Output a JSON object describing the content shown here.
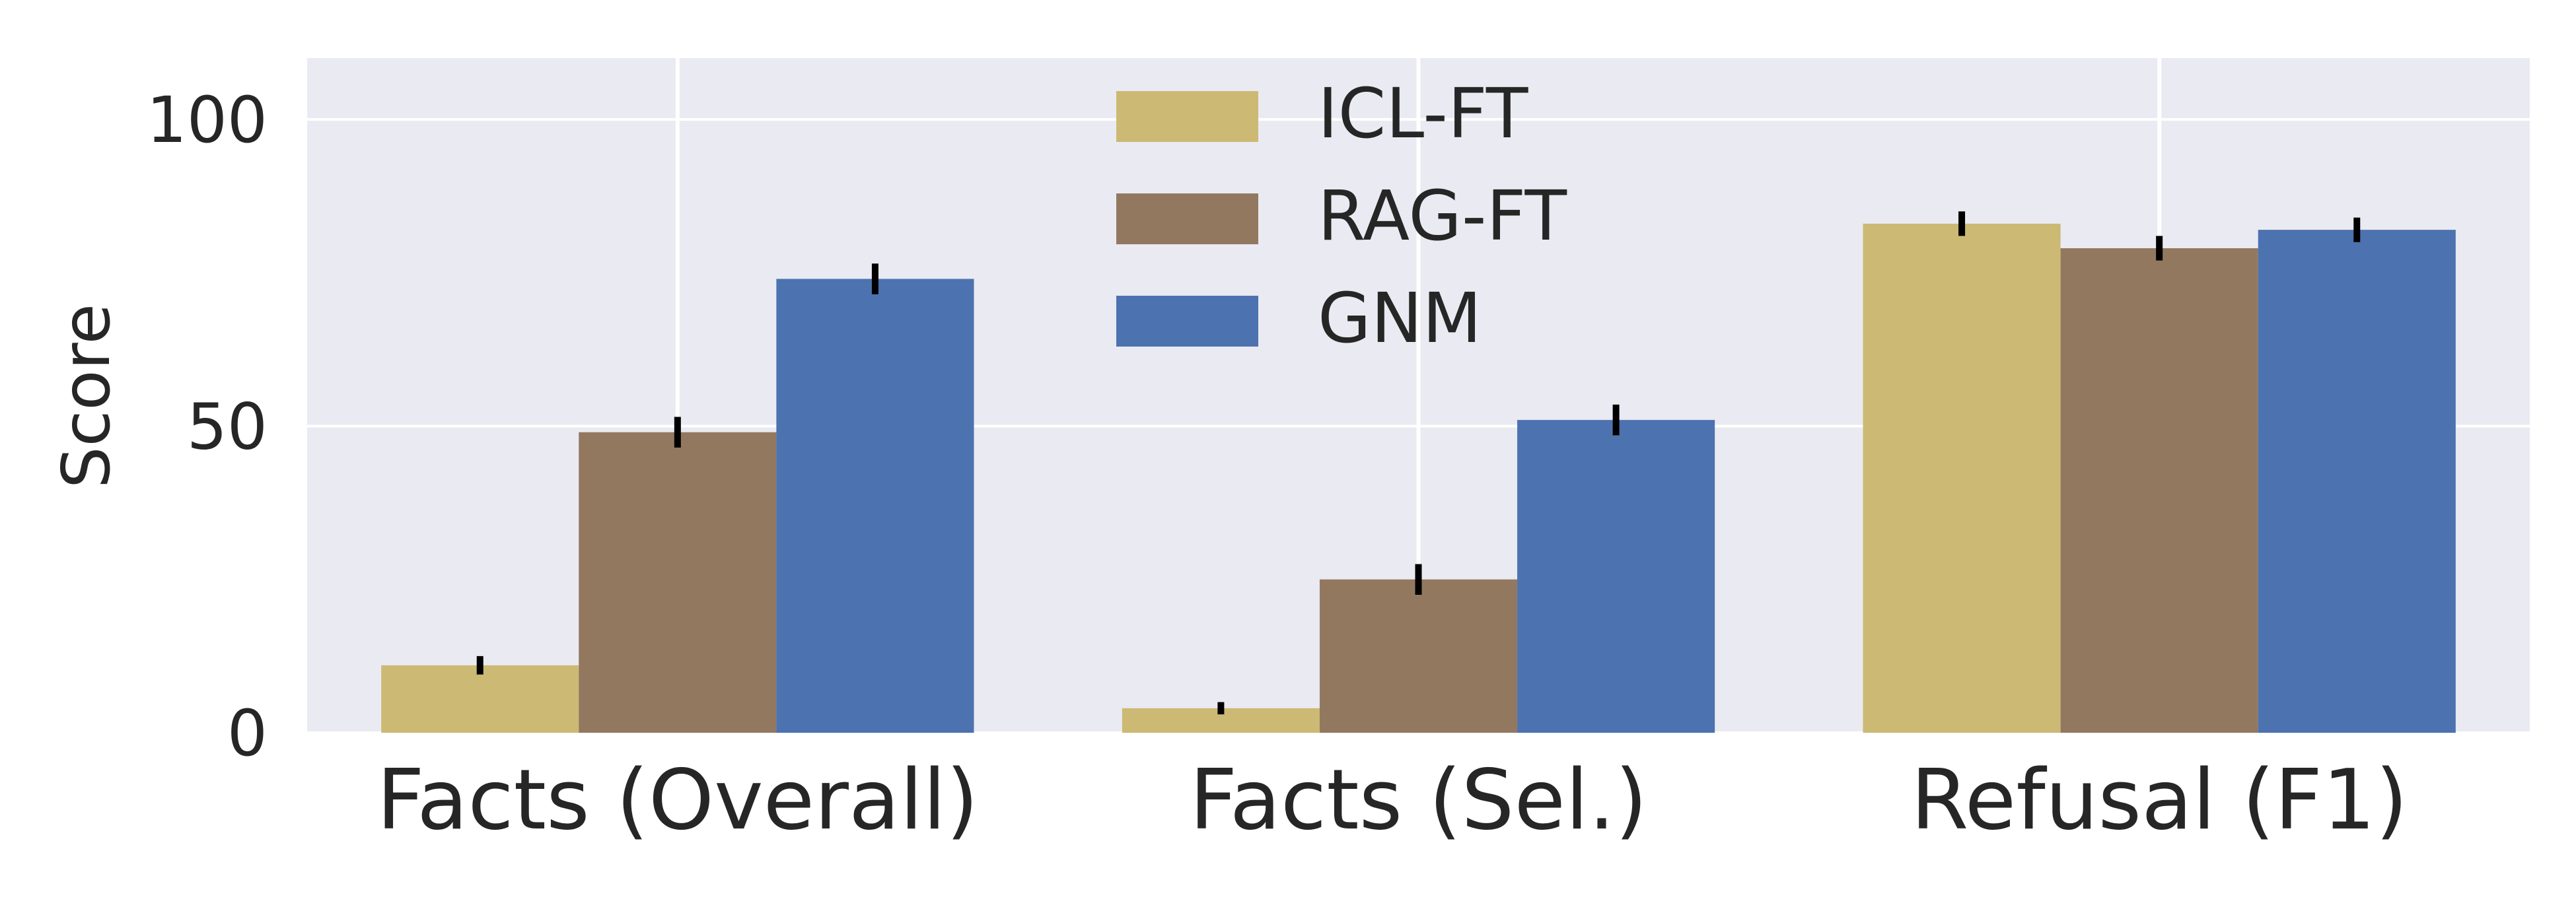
{
  "chart_data": {
    "type": "bar",
    "title": "",
    "xlabel": "",
    "ylabel": "Score",
    "ylim": [
      0,
      110
    ],
    "yticks": [
      0,
      50,
      100
    ],
    "ytick_labels": [
      "0",
      "50",
      "100"
    ],
    "grid": true,
    "legend_position": "top-center",
    "categories": [
      "Facts (Overall)",
      "Facts (Sel.)",
      "Refusal (F1)"
    ],
    "series": [
      {
        "name": "ICL-FT",
        "color": "#ccb974",
        "values": [
          11,
          4,
          83
        ],
        "errors": [
          1.5,
          1.0,
          2.0
        ]
      },
      {
        "name": "RAG-FT",
        "color": "#937860",
        "values": [
          49,
          25,
          79
        ],
        "errors": [
          2.5,
          2.5,
          2.0
        ]
      },
      {
        "name": "GNM",
        "color": "#4c72b0",
        "values": [
          74,
          51,
          82
        ],
        "errors": [
          2.5,
          2.5,
          2.0
        ]
      }
    ]
  }
}
